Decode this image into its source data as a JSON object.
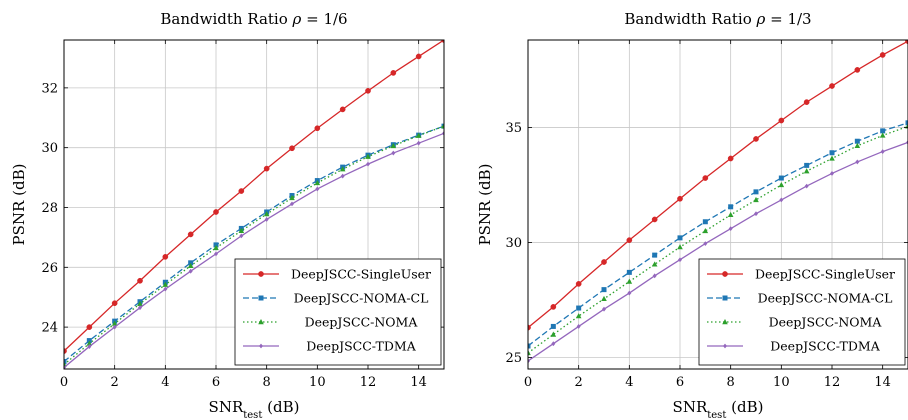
{
  "chart_data": [
    {
      "type": "line",
      "title": "Bandwidth Ratio ρ = 1/6",
      "xlabel": "SNR_test (dB)",
      "ylabel": "PSNR (dB)",
      "xlim": [
        0,
        15
      ],
      "ylim": [
        22.6,
        33.6
      ],
      "xticks": [
        0,
        2,
        4,
        6,
        8,
        10,
        12,
        14
      ],
      "yticks": [
        24,
        26,
        28,
        30,
        32
      ],
      "grid": true,
      "legend_position": "bottom-right",
      "x": [
        0,
        1,
        2,
        3,
        4,
        5,
        6,
        7,
        8,
        9,
        10,
        11,
        12,
        13,
        14,
        15
      ],
      "series": [
        {
          "name": "DeepJSCC-SingleUser",
          "color": "#d62728",
          "dash": "solid",
          "marker": "circle",
          "values": [
            23.2,
            24.0,
            24.8,
            25.55,
            26.35,
            27.1,
            27.85,
            28.55,
            29.3,
            29.98,
            30.65,
            31.28,
            31.9,
            32.5,
            33.05,
            33.6
          ]
        },
        {
          "name": "DeepJSCC-NOMA-CL",
          "color": "#1f77b4",
          "dash": "dashed",
          "marker": "square",
          "values": [
            22.85,
            23.55,
            24.2,
            24.85,
            25.5,
            26.15,
            26.75,
            27.3,
            27.85,
            28.4,
            28.9,
            29.35,
            29.75,
            30.1,
            30.42,
            30.72
          ]
        },
        {
          "name": "DeepJSCC-NOMA",
          "color": "#2ca02c",
          "dash": "dotted",
          "marker": "triangle",
          "values": [
            22.75,
            23.45,
            24.12,
            24.78,
            25.42,
            26.05,
            26.65,
            27.22,
            27.78,
            28.32,
            28.82,
            29.28,
            29.7,
            30.06,
            30.4,
            30.72
          ]
        },
        {
          "name": "DeepJSCC-TDMA",
          "color": "#9467bd",
          "dash": "solid",
          "marker": "diamond",
          "values": [
            22.65,
            23.35,
            24.0,
            24.65,
            25.27,
            25.87,
            26.45,
            27.05,
            27.6,
            28.12,
            28.62,
            29.05,
            29.45,
            29.82,
            30.15,
            30.48
          ]
        }
      ]
    },
    {
      "type": "line",
      "title": "Bandwidth Ratio ρ = 1/3",
      "xlabel": "SNR_test (dB)",
      "ylabel": "PSNR (dB)",
      "xlim": [
        0,
        15
      ],
      "ylim": [
        24.5,
        38.8
      ],
      "xticks": [
        0,
        2,
        4,
        6,
        8,
        10,
        12,
        14
      ],
      "yticks": [
        25,
        30,
        35
      ],
      "grid": true,
      "legend_position": "bottom-right",
      "x": [
        0,
        1,
        2,
        3,
        4,
        5,
        6,
        7,
        8,
        9,
        10,
        11,
        12,
        13,
        14,
        15
      ],
      "series": [
        {
          "name": "DeepJSCC-SingleUser",
          "color": "#d62728",
          "dash": "solid",
          "marker": "circle",
          "values": [
            26.3,
            27.2,
            28.2,
            29.15,
            30.1,
            31.0,
            31.9,
            32.8,
            33.65,
            34.5,
            35.3,
            36.1,
            36.8,
            37.5,
            38.15,
            38.75
          ]
        },
        {
          "name": "DeepJSCC-NOMA-CL",
          "color": "#1f77b4",
          "dash": "dashed",
          "marker": "square",
          "values": [
            25.5,
            26.35,
            27.15,
            27.95,
            28.7,
            29.45,
            30.2,
            30.9,
            31.55,
            32.2,
            32.8,
            33.35,
            33.9,
            34.4,
            34.85,
            35.2
          ]
        },
        {
          "name": "DeepJSCC-NOMA",
          "color": "#2ca02c",
          "dash": "dotted",
          "marker": "triangle",
          "values": [
            25.2,
            26.0,
            26.8,
            27.55,
            28.3,
            29.05,
            29.8,
            30.5,
            31.2,
            31.85,
            32.5,
            33.1,
            33.65,
            34.2,
            34.65,
            35.05
          ]
        },
        {
          "name": "DeepJSCC-TDMA",
          "color": "#9467bd",
          "dash": "solid",
          "marker": "diamond",
          "values": [
            24.85,
            25.6,
            26.35,
            27.1,
            27.8,
            28.55,
            29.25,
            29.95,
            30.6,
            31.25,
            31.85,
            32.45,
            33.0,
            33.5,
            33.95,
            34.35
          ]
        }
      ]
    }
  ]
}
